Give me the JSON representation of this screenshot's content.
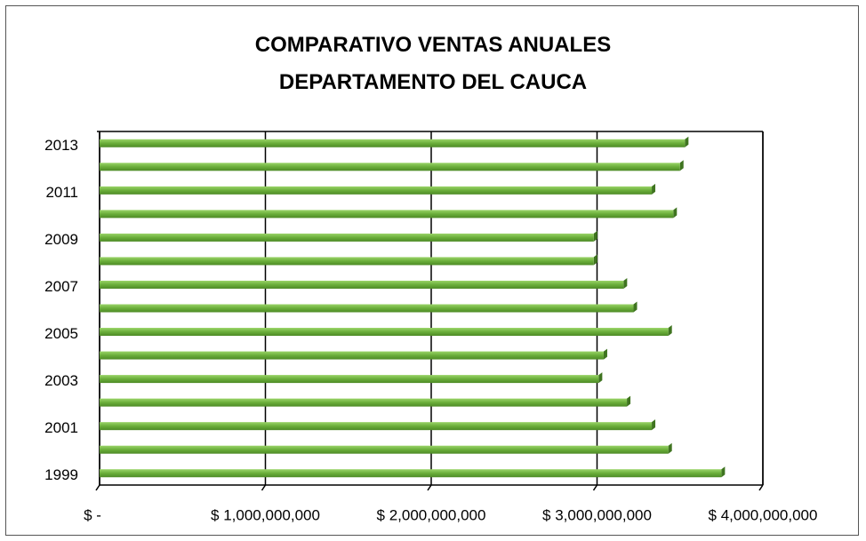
{
  "chart_data": {
    "type": "hbar",
    "title": "COMPARATIVO VENTAS ANUALES DEPARTAMENTO DEL CAUCA",
    "categories": [
      "1999",
      null,
      "2001",
      null,
      "2003",
      null,
      "2005",
      null,
      "2007",
      null,
      "2009",
      null,
      "2011",
      null,
      "2013"
    ],
    "values": [
      3750000000,
      3430000000,
      3330000000,
      3180000000,
      3010000000,
      3040000000,
      3430000000,
      3220000000,
      3160000000,
      2980000000,
      2980000000,
      3460000000,
      3330000000,
      3500000000,
      3530000000
    ],
    "color": "#6aae3a",
    "xlim": [
      0,
      4000000000
    ],
    "xticks": [
      {
        "value": 0,
        "label": "$ -"
      },
      {
        "value": 1000000000,
        "label": "$ 1,000,000,000"
      },
      {
        "value": 2000000000,
        "label": "$ 2,000,000,000"
      },
      {
        "value": 3000000000,
        "label": "$ 3,000,000,000"
      },
      {
        "value": 4000000000,
        "label": "$ 4,000,000,000"
      }
    ],
    "grid": true
  }
}
